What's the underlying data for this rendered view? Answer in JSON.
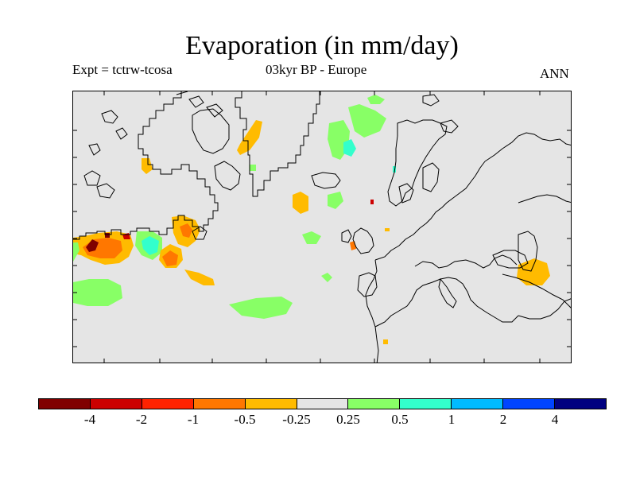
{
  "title": "Evaporation (in mm/day)",
  "subtitle_left": "Expt = tctrw-tcosa",
  "subtitle_center": "03kyr BP - Europe",
  "subtitle_right": "ANN",
  "map": {
    "background_color": "#e5e5e5",
    "coastline_color": "#000000"
  },
  "colorbar": {
    "colors": [
      "#800000",
      "#cc0000",
      "#ff2200",
      "#ff7700",
      "#ffbb00",
      "#e5e5e5",
      "#88ff66",
      "#33ffcc",
      "#00bbff",
      "#0044ff",
      "#000080"
    ],
    "labels": [
      "-4",
      "-2",
      "-1",
      "-0.5",
      "-0.25",
      "0.25",
      "0.5",
      "1",
      "2",
      "4"
    ]
  }
}
